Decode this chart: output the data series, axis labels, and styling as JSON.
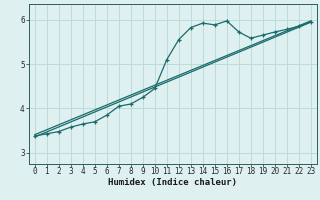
{
  "xlabel": "Humidex (Indice chaleur)",
  "bg_color": "#dff0f0",
  "grid_color": "#b8d8d8",
  "line_color": "#1a6b6b",
  "xlim": [
    -0.5,
    23.5
  ],
  "ylim": [
    2.75,
    6.35
  ],
  "xticks": [
    0,
    1,
    2,
    3,
    4,
    5,
    6,
    7,
    8,
    9,
    10,
    11,
    12,
    13,
    14,
    15,
    16,
    17,
    18,
    19,
    20,
    21,
    22,
    23
  ],
  "yticks": [
    3,
    4,
    5,
    6
  ],
  "curve_x": [
    0,
    1,
    2,
    3,
    4,
    5,
    6,
    7,
    8,
    9,
    10,
    11,
    12,
    13,
    14,
    15,
    16,
    17,
    18,
    19,
    20,
    21,
    22,
    23
  ],
  "curve_y": [
    3.38,
    3.43,
    3.48,
    3.58,
    3.65,
    3.7,
    3.85,
    4.05,
    4.1,
    4.25,
    4.45,
    5.1,
    5.55,
    5.82,
    5.92,
    5.88,
    5.97,
    5.72,
    5.58,
    5.65,
    5.72,
    5.78,
    5.85,
    5.95
  ],
  "line1_x": [
    0,
    23
  ],
  "line1_y": [
    3.36,
    5.94
  ],
  "line2_x": [
    0,
    23
  ],
  "line2_y": [
    3.41,
    5.97
  ],
  "fontsize_tick": 5.5,
  "fontsize_label": 6.5
}
